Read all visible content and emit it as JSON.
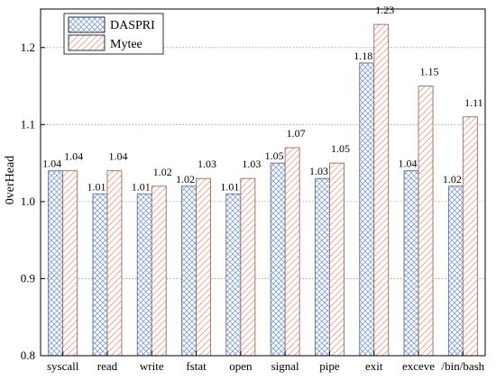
{
  "chart_data": {
    "type": "bar",
    "ylabel": "0verHead",
    "xlabel": "",
    "ylim": [
      0.8,
      1.25
    ],
    "yticks": [
      "0.8",
      "0.9",
      "1.0",
      "1.1",
      "1.2"
    ],
    "grid": "horizontal-dotted",
    "legend_position": "top-left",
    "categories": [
      "syscall",
      "read",
      "write",
      "fstat",
      "open",
      "signal",
      "pipe",
      "exit",
      "excеve",
      "/bin/bash"
    ],
    "series": [
      {
        "name": "DASPRI",
        "color": "#7f9fd6",
        "pattern": "crosshatch",
        "values": [
          1.04,
          1.01,
          1.01,
          1.02,
          1.01,
          1.05,
          1.03,
          1.18,
          1.04,
          1.02
        ],
        "labels": [
          "1.04",
          "1.01",
          "1.01",
          "1.02",
          "1.01",
          "1.05",
          "1.03",
          "1.18",
          "1.04",
          "1.02"
        ]
      },
      {
        "name": "Mytee",
        "color": "#e8a08a",
        "pattern": "diagonal",
        "values": [
          1.04,
          1.04,
          1.02,
          1.03,
          1.03,
          1.07,
          1.05,
          1.23,
          1.15,
          1.11
        ],
        "labels": [
          "1.04",
          "1.04",
          "1.02",
          "1.03",
          "1.03",
          "1.07",
          "1.05",
          "1.23",
          "1.15",
          "1.11"
        ]
      }
    ]
  }
}
